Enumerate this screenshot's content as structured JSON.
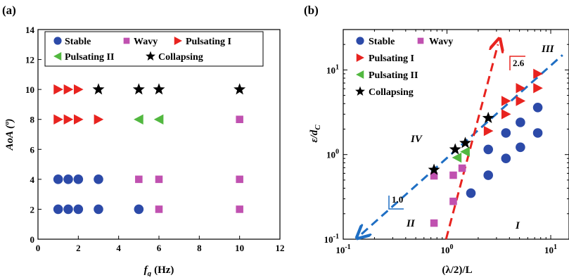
{
  "colors": {
    "stable": "#2c4aa8",
    "wavy": "#c051b0",
    "pulsating_1": "#e8231f",
    "pulsating_2": "#52b840",
    "collapsing": "#000000",
    "fit_line_blue": "#1f6fc4",
    "fit_line_red": "#e8231f"
  },
  "chart_data": [
    {
      "type": "scatter",
      "panel_label": "(a)",
      "xlabel_main": "f",
      "xlabel_sub": "g",
      "xlabel_unit": "(Hz)",
      "ylabel": "AoA (º)",
      "xlim": [
        0,
        12
      ],
      "ylim": [
        0,
        14
      ],
      "xticks": [
        "0",
        "2",
        "4",
        "6",
        "8",
        "10",
        "12"
      ],
      "yticks": [
        "0",
        "2",
        "4",
        "6",
        "8",
        "10",
        "12",
        "14"
      ],
      "legend_position": "top",
      "legend": [
        {
          "name": "Stable",
          "marker": "circle",
          "color_key": "stable"
        },
        {
          "name": "Wavy",
          "marker": "square",
          "color_key": "wavy"
        },
        {
          "name": "Pulsating I",
          "marker": "triangle-right",
          "color_key": "pulsating_1"
        },
        {
          "name": "Pulsating II",
          "marker": "triangle-left",
          "color_key": "pulsating_2"
        },
        {
          "name": "Collapsing",
          "marker": "star",
          "color_key": "collapsing"
        }
      ],
      "series": [
        {
          "name": "Stable",
          "marker": "circle",
          "color_key": "stable",
          "points": [
            [
              1,
              2
            ],
            [
              1.5,
              2
            ],
            [
              2,
              2
            ],
            [
              3,
              2
            ],
            [
              5,
              2
            ],
            [
              1,
              4
            ],
            [
              1.5,
              4
            ],
            [
              2,
              4
            ],
            [
              3,
              4
            ]
          ]
        },
        {
          "name": "Wavy",
          "marker": "square",
          "color_key": "wavy",
          "points": [
            [
              6,
              2
            ],
            [
              10,
              2
            ],
            [
              5,
              4
            ],
            [
              6,
              4
            ],
            [
              10,
              4
            ],
            [
              10,
              8
            ]
          ]
        },
        {
          "name": "Pulsating I",
          "marker": "triangle-right",
          "color_key": "pulsating_1",
          "points": [
            [
              1,
              8
            ],
            [
              1.5,
              8
            ],
            [
              2,
              8
            ],
            [
              3,
              8
            ],
            [
              1,
              10
            ],
            [
              1.5,
              10
            ],
            [
              2,
              10
            ]
          ]
        },
        {
          "name": "Pulsating II",
          "marker": "triangle-left",
          "color_key": "pulsating_2",
          "points": [
            [
              5,
              8
            ],
            [
              6,
              8
            ]
          ]
        },
        {
          "name": "Collapsing",
          "marker": "star",
          "color_key": "collapsing",
          "points": [
            [
              3,
              10
            ],
            [
              5,
              10
            ],
            [
              6,
              10
            ],
            [
              10,
              10
            ]
          ]
        }
      ]
    },
    {
      "type": "scatter",
      "scale": "log-log",
      "panel_label": "(b)",
      "xlabel": "(λ/2)/L",
      "ylabel_main": "ε/d",
      "ylabel_sub": "C",
      "xlim": [
        0.1,
        15
      ],
      "ylim": [
        0.1,
        30
      ],
      "xticks": [
        {
          "value": 0.1,
          "base": "10",
          "exp": "-1"
        },
        {
          "value": 1,
          "base": "10",
          "exp": "0"
        },
        {
          "value": 10,
          "base": "10",
          "exp": "1"
        }
      ],
      "yticks": [
        {
          "value": 0.1,
          "base": "10",
          "exp": "-1"
        },
        {
          "value": 1,
          "base": "10",
          "exp": "0"
        },
        {
          "value": 10,
          "base": "10",
          "exp": "1"
        }
      ],
      "legend_position": "top-left",
      "legend": [
        {
          "name": "Stable",
          "marker": "circle",
          "color_key": "stable"
        },
        {
          "name": "Wavy",
          "marker": "square",
          "color_key": "wavy"
        },
        {
          "name": "Pulsating I",
          "marker": "triangle-right",
          "color_key": "pulsating_1"
        },
        {
          "name": "Pulsating II",
          "marker": "triangle-left",
          "color_key": "pulsating_2"
        },
        {
          "name": "Collapsing",
          "marker": "star",
          "color_key": "collapsing"
        }
      ],
      "regions": [
        "I",
        "II",
        "III",
        "IV"
      ],
      "slope_labels": [
        "1.0",
        "2.6"
      ],
      "fit_lines": [
        {
          "name": "slope-1.0",
          "color_key": "fit_line_blue",
          "from": [
            0.15,
            0.115
          ],
          "to": [
            13,
            15
          ]
        },
        {
          "name": "slope-2.6",
          "color_key": "fit_line_red",
          "from": [
            0.98,
            0.1
          ],
          "to": [
            3.1,
            20
          ]
        }
      ],
      "series": [
        {
          "name": "Stable",
          "marker": "circle",
          "color_key": "stable",
          "points": [
            [
              1.7,
              0.35
            ],
            [
              2.5,
              0.57
            ],
            [
              2.5,
              1.15
            ],
            [
              3.7,
              0.9
            ],
            [
              3.7,
              1.8
            ],
            [
              5.1,
              1.22
            ],
            [
              5.1,
              2.4
            ],
            [
              7.5,
              1.8
            ],
            [
              7.5,
              3.6
            ]
          ]
        },
        {
          "name": "Wavy",
          "marker": "square",
          "color_key": "wavy",
          "points": [
            [
              0.75,
              0.155
            ],
            [
              0.75,
              0.56
            ],
            [
              1.15,
              0.28
            ],
            [
              1.15,
              0.57
            ],
            [
              1.4,
              0.69
            ]
          ]
        },
        {
          "name": "Pulsating I",
          "marker": "triangle-right",
          "color_key": "pulsating_1",
          "points": [
            [
              2.5,
              1.9
            ],
            [
              3.7,
              3.0
            ],
            [
              3.7,
              4.3
            ],
            [
              5.1,
              4.3
            ],
            [
              5.1,
              6.1
            ],
            [
              7.5,
              6.1
            ],
            [
              7.5,
              9.0
            ]
          ]
        },
        {
          "name": "Pulsating II",
          "marker": "triangle-left",
          "color_key": "pulsating_2",
          "points": [
            [
              1.25,
              0.92
            ],
            [
              1.5,
              1.08
            ]
          ]
        },
        {
          "name": "Collapsing",
          "marker": "star",
          "color_key": "collapsing",
          "points": [
            [
              0.75,
              0.66
            ],
            [
              1.2,
              1.15
            ],
            [
              1.5,
              1.37
            ],
            [
              2.5,
              2.7
            ]
          ]
        }
      ]
    }
  ]
}
